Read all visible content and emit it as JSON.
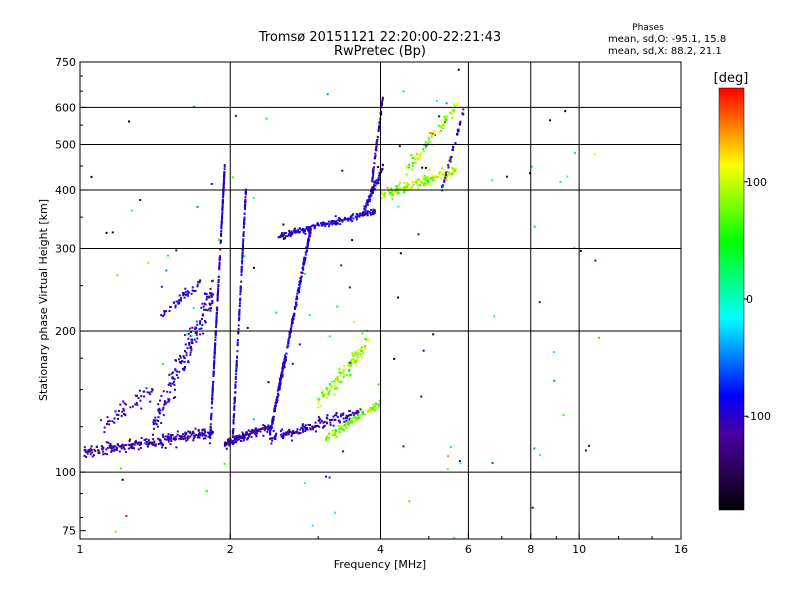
{
  "title_line1": "Tromsø 20151121 22:20:00-22:21:43",
  "title_line2": "RwPretec (Bp)",
  "stats": {
    "heading": "Phases",
    "line_o": "mean, sd,O: -95.1, 15.8",
    "line_x": "mean, sd,X:  88.2, 21.1"
  },
  "colorbar": {
    "label": "[deg]",
    "ticks": [
      {
        "label": "100",
        "value": 100
      },
      {
        "label": "0",
        "value": 0
      },
      {
        "label": "-100",
        "value": -100
      }
    ],
    "range": [
      -180,
      180
    ],
    "colors": [
      "#000000",
      "#2a0055",
      "#4b00a0",
      "#0000ff",
      "#0080ff",
      "#00ffff",
      "#00ff80",
      "#00ff00",
      "#80ff00",
      "#ffff00",
      "#ff8000",
      "#ff0000"
    ]
  },
  "chart_data": {
    "type": "scatter",
    "xlabel": "Frequency [MHz]",
    "ylabel": "Stationary phase Virtual Height [km]",
    "x_scale": "log",
    "y_scale": "log",
    "xlim": [
      1,
      16
    ],
    "ylim": [
      72,
      750
    ],
    "x_ticks": [
      {
        "label": "1",
        "value": 1
      },
      {
        "label": "2",
        "value": 2
      },
      {
        "label": "4",
        "value": 4
      },
      {
        "label": "6",
        "value": 6
      },
      {
        "label": "8",
        "value": 8
      },
      {
        "label": "10",
        "value": 10
      },
      {
        "label": "16",
        "value": 16
      }
    ],
    "x_grid": [
      2,
      4,
      6,
      8,
      10
    ],
    "y_ticks": [
      {
        "label": "750",
        "value": 750
      },
      {
        "label": "600",
        "value": 600
      },
      {
        "label": "500",
        "value": 500
      },
      {
        "label": "400",
        "value": 400
      },
      {
        "label": "300",
        "value": 300
      },
      {
        "label": "200",
        "value": 200
      },
      {
        "label": "100",
        "value": 100
      },
      {
        "label": "75",
        "value": 75
      }
    ],
    "y_grid": [
      100,
      200,
      300,
      400,
      500,
      600
    ],
    "grid": true,
    "series": [
      {
        "segments": [
          {
            "f0": 1.02,
            "f1": 1.85,
            "h0": 110,
            "h1": 122,
            "spread": 0.05,
            "n": 260,
            "phase": -110,
            "phase_sd": 14
          },
          {
            "f0": 1.1,
            "f1": 1.4,
            "h0": 125,
            "h1": 150,
            "spread": 0.1,
            "n": 50,
            "phase": -105,
            "phase_sd": 15
          },
          {
            "f0": 1.4,
            "f1": 1.85,
            "h0": 125,
            "h1": 240,
            "spread": 0.15,
            "n": 170,
            "phase": -105,
            "phase_sd": 15
          },
          {
            "f0": 1.45,
            "f1": 1.75,
            "h0": 215,
            "h1": 255,
            "spread": 0.05,
            "n": 45,
            "phase": -95,
            "phase_sd": 15
          },
          {
            "f0": 1.82,
            "f1": 1.95,
            "h0": 115,
            "h1": 450,
            "spread": 0.02,
            "n": 220,
            "phase": -100,
            "phase_sd": 15
          },
          {
            "f0": 1.95,
            "f1": 2.4,
            "h0": 115,
            "h1": 125,
            "spread": 0.04,
            "n": 140,
            "phase": -110,
            "phase_sd": 12
          },
          {
            "f0": 2.02,
            "f1": 2.15,
            "h0": 115,
            "h1": 400,
            "spread": 0.03,
            "n": 160,
            "phase": -100,
            "phase_sd": 15
          },
          {
            "f0": 2.4,
            "f1": 2.9,
            "h0": 120,
            "h1": 330,
            "spread": 0.04,
            "n": 320,
            "phase": -100,
            "phase_sd": 15
          },
          {
            "f0": 2.4,
            "f1": 3.7,
            "h0": 118,
            "h1": 135,
            "spread": 0.05,
            "n": 150,
            "phase": -105,
            "phase_sd": 15
          },
          {
            "f0": 2.5,
            "f1": 3.9,
            "h0": 318,
            "h1": 360,
            "spread": 0.03,
            "n": 190,
            "phase": -100,
            "phase_sd": 15
          },
          {
            "f0": 3.1,
            "f1": 4.0,
            "h0": 118,
            "h1": 140,
            "spread": 0.04,
            "n": 120,
            "phase": 80,
            "phase_sd": 25
          },
          {
            "f0": 3.0,
            "f1": 3.8,
            "h0": 140,
            "h1": 190,
            "spread": 0.08,
            "n": 110,
            "phase": 85,
            "phase_sd": 25
          },
          {
            "f0": 3.7,
            "f1": 4.05,
            "h0": 360,
            "h1": 450,
            "spread": 0.04,
            "n": 70,
            "phase": -100,
            "phase_sd": 15
          },
          {
            "f0": 3.85,
            "f1": 4.05,
            "h0": 420,
            "h1": 640,
            "spread": 0.03,
            "n": 60,
            "phase": -110,
            "phase_sd": 12
          },
          {
            "f0": 4.0,
            "f1": 5.7,
            "h0": 390,
            "h1": 440,
            "spread": 0.05,
            "n": 170,
            "phase": 95,
            "phase_sd": 25
          },
          {
            "f0": 4.5,
            "f1": 5.8,
            "h0": 440,
            "h1": 620,
            "spread": 0.06,
            "n": 80,
            "phase": 90,
            "phase_sd": 30
          },
          {
            "f0": 5.3,
            "f1": 5.9,
            "h0": 400,
            "h1": 600,
            "spread": 0.04,
            "n": 40,
            "phase": -100,
            "phase_sd": 20
          },
          {
            "f0": 1.05,
            "f1": 11.0,
            "h0": 80,
            "h1": 680,
            "spread": 0.9,
            "n": 120,
            "phase": -60,
            "phase_sd": 90
          }
        ]
      }
    ]
  }
}
